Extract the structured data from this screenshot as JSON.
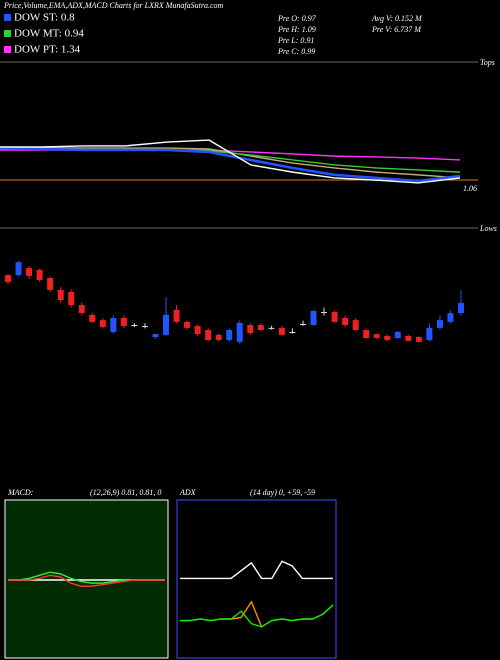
{
  "header": {
    "title": "Price,Volume,EMA,ADX,MACD Charts for LXRX  MunafaSutra.com",
    "dow": [
      "DOW ST: 0.8",
      "DOW MT: 0.94",
      "DOW PT: 1.34"
    ],
    "pre": [
      "Pre  O: 0.97",
      "Pre  H: 1.09",
      "Pre  L: 0.91",
      "Pre  C: 0.99"
    ],
    "volume": [
      "Avg V: 0.152  M",
      "Pre  V: 6.737 M"
    ]
  },
  "chart_data": [
    {
      "type": "candlestick",
      "annotation": "Lows",
      "up_color": "#2255ff",
      "down_color": "#ee2222",
      "flat_color": "#dddddd",
      "ylim": [
        0.75,
        1.25
      ],
      "open": [
        1.115,
        1.115,
        1.142,
        1.135,
        1.104,
        1.058,
        1.05,
        1.0,
        0.962,
        0.942,
        0.896,
        0.95,
        0.923,
        0.919,
        0.877,
        0.885,
        0.981,
        0.935,
        0.919,
        0.904,
        0.885,
        0.865,
        0.858,
        0.923,
        0.923,
        0.912,
        0.912,
        0.896,
        0.927,
        0.923,
        0.973,
        0.973,
        0.95,
        0.942,
        0.904,
        0.888,
        0.881,
        0.873,
        0.881,
        0.877,
        0.865,
        0.912,
        0.935,
        0.969
      ],
      "high": [
        1.12,
        1.17,
        1.15,
        1.14,
        1.11,
        1.07,
        1.06,
        1.01,
        0.97,
        0.95,
        0.96,
        0.96,
        0.93,
        0.93,
        0.89,
        1.03,
        1.0,
        0.94,
        0.925,
        0.91,
        0.89,
        0.91,
        0.94,
        0.93,
        0.93,
        0.92,
        0.92,
        0.91,
        0.94,
        0.98,
        0.99,
        0.98,
        0.96,
        0.95,
        0.91,
        0.89,
        0.885,
        0.9,
        0.885,
        0.88,
        0.93,
        0.96,
        0.98,
        1.058
      ],
      "low": [
        1.08,
        1.11,
        1.1,
        1.09,
        1.05,
        1.01,
        0.99,
        0.96,
        0.93,
        0.91,
        0.89,
        0.91,
        0.915,
        0.91,
        0.87,
        0.88,
        0.93,
        0.905,
        0.88,
        0.86,
        0.86,
        0.86,
        0.85,
        0.885,
        0.9,
        0.905,
        0.88,
        0.89,
        0.92,
        0.92,
        0.96,
        0.93,
        0.915,
        0.9,
        0.87,
        0.87,
        0.86,
        0.87,
        0.86,
        0.855,
        0.86,
        0.905,
        0.93,
        0.96
      ],
      "close": [
        1.088,
        1.165,
        1.112,
        1.096,
        1.058,
        1.019,
        1.0,
        0.969,
        0.935,
        0.915,
        0.95,
        0.919,
        0.923,
        0.919,
        0.888,
        0.962,
        0.935,
        0.912,
        0.888,
        0.865,
        0.865,
        0.904,
        0.931,
        0.892,
        0.904,
        0.912,
        0.885,
        0.896,
        0.927,
        0.977,
        0.973,
        0.935,
        0.923,
        0.904,
        0.873,
        0.873,
        0.865,
        0.896,
        0.862,
        0.858,
        0.912,
        0.942,
        0.969,
        1.008
      ]
    },
    {
      "type": "line",
      "annotation": "Tops",
      "label": "1.06",
      "ylim": [
        1.0,
        1.5
      ],
      "series": [
        {
          "color": "#ff33ff",
          "values": [
            1.181,
            1.181,
            1.181,
            1.181,
            1.181,
            1.181,
            1.174,
            1.167,
            1.159,
            1.156,
            1.152,
            1.145
          ]
        },
        {
          "color": "#c8a878",
          "values": [
            1.188,
            1.188,
            1.188,
            1.188,
            1.188,
            1.185,
            1.159,
            1.134,
            1.116,
            1.101,
            1.091,
            1.08
          ]
        },
        {
          "color": "#33cc33",
          "values": [
            1.185,
            1.185,
            1.181,
            1.181,
            1.181,
            1.178,
            1.163,
            1.145,
            1.127,
            1.116,
            1.109,
            1.101
          ]
        },
        {
          "color": "#2255ff",
          "values": [
            1.188,
            1.185,
            1.181,
            1.181,
            1.181,
            1.174,
            1.145,
            1.116,
            1.091,
            1.08,
            1.069,
            1.087
          ]
        },
        {
          "color": "#ffffff",
          "values": [
            1.192,
            1.192,
            1.196,
            1.196,
            1.21,
            1.217,
            1.127,
            1.101,
            1.08,
            1.072,
            1.062,
            1.08
          ]
        }
      ]
    },
    {
      "type": "line",
      "title": "MACD:",
      "subtitle": "(12,26,9) 0.81, 0.81, 0",
      "ylim": [
        -5,
        5
      ],
      "series": [
        {
          "color": "#ffffff",
          "values": [
            0,
            0,
            0,
            0,
            0,
            0,
            0,
            0,
            0,
            0,
            0,
            0,
            0,
            0,
            0,
            0
          ]
        },
        {
          "color": "#33ee33",
          "values": [
            0,
            0,
            0.1,
            0.3,
            0.5,
            0.4,
            0.1,
            -0.1,
            -0.2,
            -0.2,
            -0.1,
            0,
            0,
            0,
            0,
            0
          ]
        },
        {
          "color": "#ff3333",
          "values": [
            0,
            0,
            0,
            0.1,
            0.3,
            0.2,
            -0.2,
            -0.4,
            -0.4,
            -0.3,
            -0.2,
            -0.1,
            0,
            0,
            0,
            0
          ]
        }
      ]
    },
    {
      "type": "line",
      "title": "ADX",
      "subtitle": "(14 day) 0, +59, -59",
      "ylim": [
        0,
        100
      ],
      "series": [
        {
          "color": "#ffffff",
          "values": [
            51,
            51,
            51,
            51,
            51,
            51,
            56,
            61,
            51,
            51,
            62,
            59,
            51,
            51,
            51,
            51
          ]
        },
        {
          "color": "#ff8800",
          "values": [
            24,
            24,
            25,
            24,
            25,
            25,
            26,
            36,
            20,
            24,
            25,
            24,
            25,
            25,
            28,
            34
          ]
        },
        {
          "color": "#00ee00",
          "values": [
            24,
            24,
            25,
            24,
            25,
            25,
            30,
            22,
            20,
            24,
            25,
            24,
            25,
            25,
            28,
            34
          ]
        }
      ]
    }
  ]
}
